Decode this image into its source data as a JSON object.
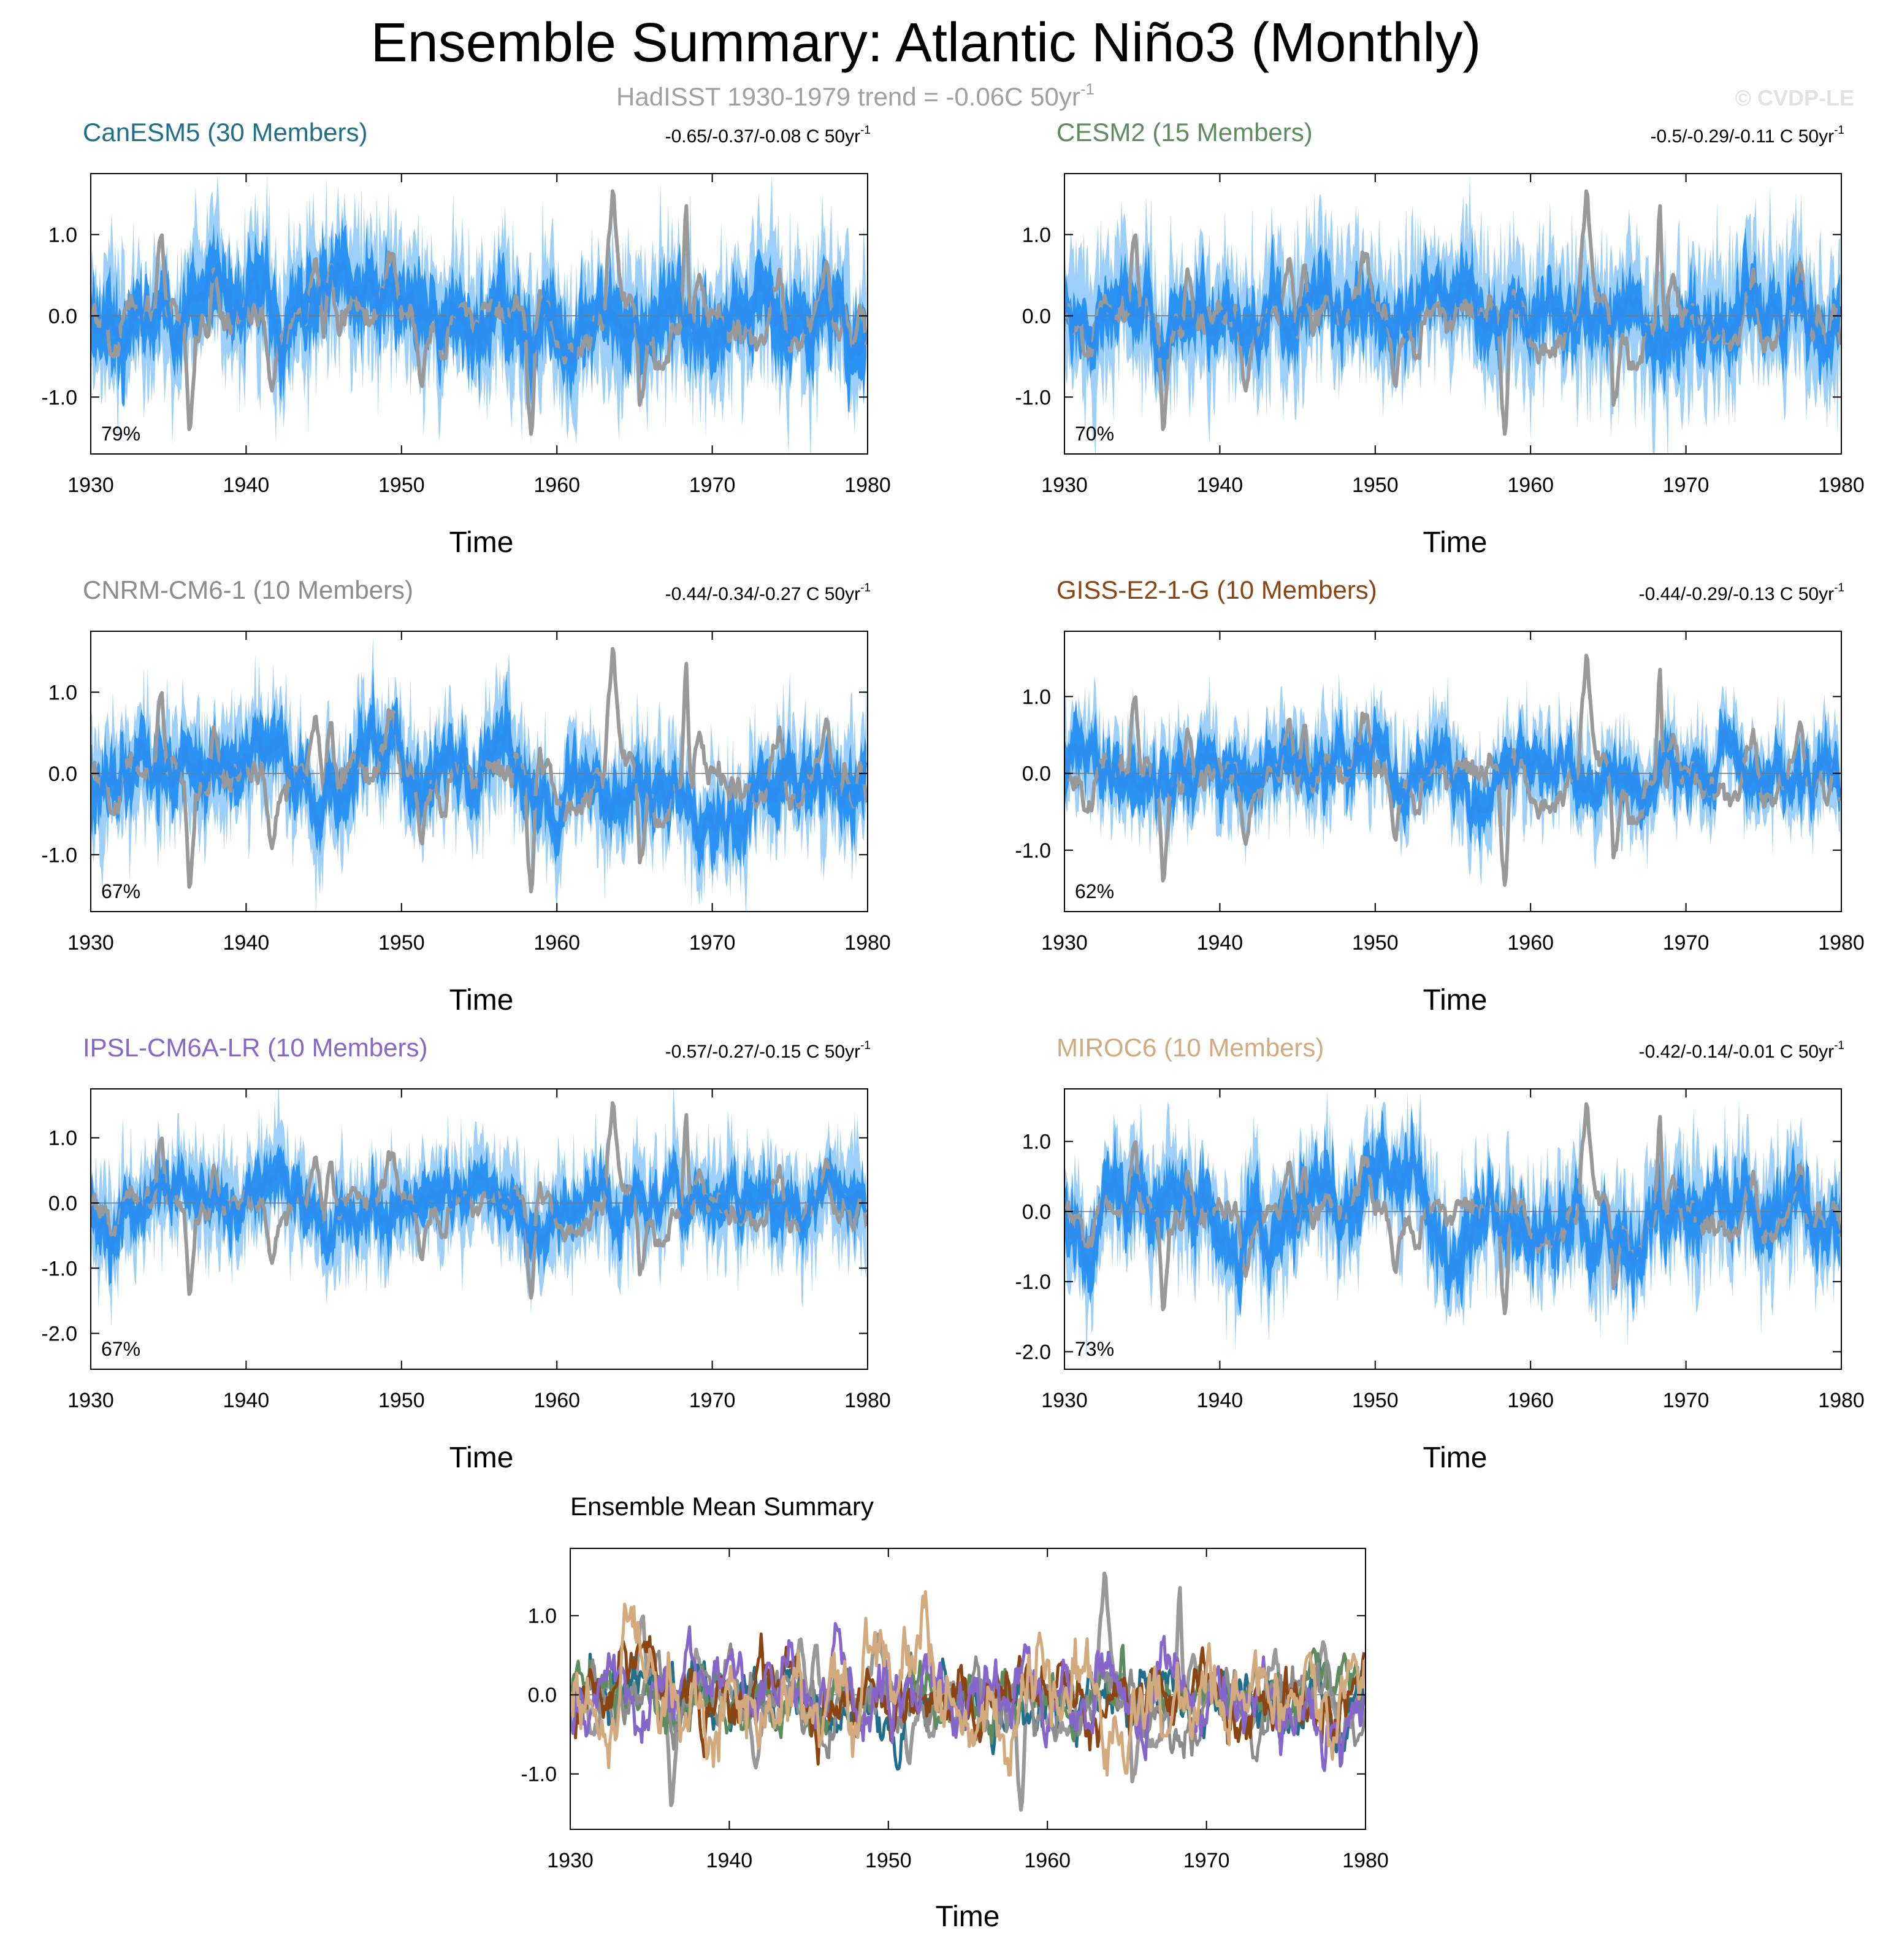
{
  "figure": {
    "title": "Ensemble Summary: Atlantic Niño3 (Monthly)",
    "subtitle": "HadISST 1930-1979 trend = -0.06C 50yr",
    "subtitle_sup": "-1",
    "credit": "© CVDP-LE",
    "colors": {
      "observations": "#999999",
      "ensemble_range_light": "#9dcffb",
      "ensemble_range_dark": "#2a93f3",
      "ensemble_mean": "#2b8ef0"
    }
  },
  "chart_data": [
    {
      "type": "line",
      "panel": "CanESM5",
      "title": "CanESM5 (30 Members)",
      "title_color": "#1f6f8b",
      "trend_label": "-0.65/-0.37/-0.08 C 50yr",
      "trend_sup": "-1",
      "percent_label": "79%",
      "xlabel": "Time",
      "xlim": [
        1930,
        1980
      ],
      "ylim": [
        -1.7,
        1.75
      ],
      "xticks": [
        1930,
        1940,
        1950,
        1960,
        1970,
        1980
      ],
      "yticks": [
        -1.0,
        0.0,
        1.0
      ],
      "yticklabels": [
        "-1.0",
        "0.0",
        "1.0"
      ],
      "model": {
        "seed": 11,
        "drift": -0.2,
        "amp_outer": 0.6,
        "amp_inner": 0.3,
        "mean_noise": 0.12
      }
    },
    {
      "type": "line",
      "panel": "CESM2",
      "title": "CESM2 (15 Members)",
      "title_color": "#5e8c5e",
      "trend_label": "-0.5/-0.29/-0.11 C 50yr",
      "trend_sup": "-1",
      "percent_label": "70%",
      "xlabel": "Time",
      "xlim": [
        1930,
        1980
      ],
      "ylim": [
        -1.7,
        1.75
      ],
      "xticks": [
        1930,
        1940,
        1950,
        1960,
        1970,
        1980
      ],
      "yticks": [
        -1.0,
        0.0,
        1.0
      ],
      "yticklabels": [
        "-1.0",
        "0.0",
        "1.0"
      ],
      "model": {
        "seed": 23,
        "drift": -0.15,
        "amp_outer": 0.6,
        "amp_inner": 0.25,
        "mean_noise": 0.11
      }
    },
    {
      "type": "line",
      "panel": "CNRM-CM6-1",
      "title": "CNRM-CM6-1 (10 Members)",
      "title_color": "#8c8c8c",
      "trend_label": "-0.44/-0.34/-0.27 C 50yr",
      "trend_sup": "-1",
      "percent_label": "67%",
      "xlabel": "Time",
      "xlim": [
        1930,
        1980
      ],
      "ylim": [
        -1.7,
        1.75
      ],
      "xticks": [
        1930,
        1940,
        1950,
        1960,
        1970,
        1980
      ],
      "yticks": [
        -1.0,
        0.0,
        1.0
      ],
      "yticklabels": [
        "-1.0",
        "0.0",
        "1.0"
      ],
      "model": {
        "seed": 37,
        "drift": -0.3,
        "amp_outer": 0.5,
        "amp_inner": 0.25,
        "mean_noise": 0.12
      }
    },
    {
      "type": "line",
      "panel": "GISS-E2-1-G",
      "title": "GISS-E2-1-G (10 Members)",
      "title_color": "#8b4513",
      "trend_label": "-0.44/-0.29/-0.13 C 50yr",
      "trend_sup": "-1",
      "percent_label": "62%",
      "xlabel": "Time",
      "xlim": [
        1930,
        1980
      ],
      "ylim": [
        -1.8,
        1.85
      ],
      "xticks": [
        1930,
        1940,
        1950,
        1960,
        1970,
        1980
      ],
      "yticks": [
        -1.0,
        0.0,
        1.0
      ],
      "yticklabels": [
        "-1.0",
        "0.0",
        "1.0"
      ],
      "model": {
        "seed": 41,
        "drift": -0.2,
        "amp_outer": 0.45,
        "amp_inner": 0.22,
        "mean_noise": 0.11
      }
    },
    {
      "type": "line",
      "panel": "IPSL-CM6A-LR",
      "title": "IPSL-CM6A-LR (10 Members)",
      "title_color": "#8766cc",
      "trend_label": "-0.57/-0.27/-0.15 C 50yr",
      "trend_sup": "-1",
      "percent_label": "67%",
      "xlabel": "Time",
      "xlim": [
        1930,
        1980
      ],
      "ylim": [
        -2.55,
        1.75
      ],
      "xticks": [
        1930,
        1940,
        1950,
        1960,
        1970,
        1980
      ],
      "yticks": [
        -2.0,
        -1.0,
        0.0,
        1.0
      ],
      "yticklabels": [
        "-2.0",
        "-1.0",
        "0.0",
        "1.0"
      ],
      "model": {
        "seed": 53,
        "drift": -0.15,
        "amp_outer": 0.55,
        "amp_inner": 0.25,
        "mean_noise": 0.12
      }
    },
    {
      "type": "line",
      "panel": "MIROC6",
      "title": "MIROC6 (10 Members)",
      "title_color": "#d2aa7d",
      "trend_label": "-0.42/-0.14/-0.01 C 50yr",
      "trend_sup": "-1",
      "percent_label": "73%",
      "xlabel": "Time",
      "xlim": [
        1930,
        1980
      ],
      "ylim": [
        -2.25,
        1.75
      ],
      "xticks": [
        1930,
        1940,
        1950,
        1960,
        1970,
        1980
      ],
      "yticks": [
        -2.0,
        -1.0,
        0.0,
        1.0
      ],
      "yticklabels": [
        "-2.0",
        "-1.0",
        "0.0",
        "1.0"
      ],
      "model": {
        "seed": 67,
        "drift": -0.1,
        "amp_outer": 0.6,
        "amp_inner": 0.3,
        "mean_noise": 0.14
      }
    },
    {
      "type": "line",
      "panel": "Ensemble Mean Summary",
      "title": "Ensemble Mean Summary",
      "title_color": "#000000",
      "xlabel": "Time",
      "xlim": [
        1930,
        1980
      ],
      "ylim": [
        -1.7,
        1.85
      ],
      "xticks": [
        1930,
        1940,
        1950,
        1960,
        1970,
        1980
      ],
      "yticks": [
        -1.0,
        0.0,
        1.0
      ],
      "yticklabels": [
        "-1.0",
        "0.0",
        "1.0"
      ],
      "series": [
        {
          "color": "#1f6f8b",
          "seed": 11,
          "drift": -0.2,
          "noise": 0.14
        },
        {
          "color": "#5e8c5e",
          "seed": 23,
          "drift": -0.15,
          "noise": 0.13
        },
        {
          "color": "#8c8c8c",
          "seed": 37,
          "drift": -0.3,
          "noise": 0.13
        },
        {
          "color": "#8b4513",
          "seed": 41,
          "drift": -0.2,
          "noise": 0.15
        },
        {
          "color": "#8766cc",
          "seed": 53,
          "drift": -0.15,
          "noise": 0.16
        },
        {
          "color": "#d2aa7d",
          "seed": 67,
          "drift": -0.1,
          "noise": 0.2
        }
      ]
    }
  ]
}
